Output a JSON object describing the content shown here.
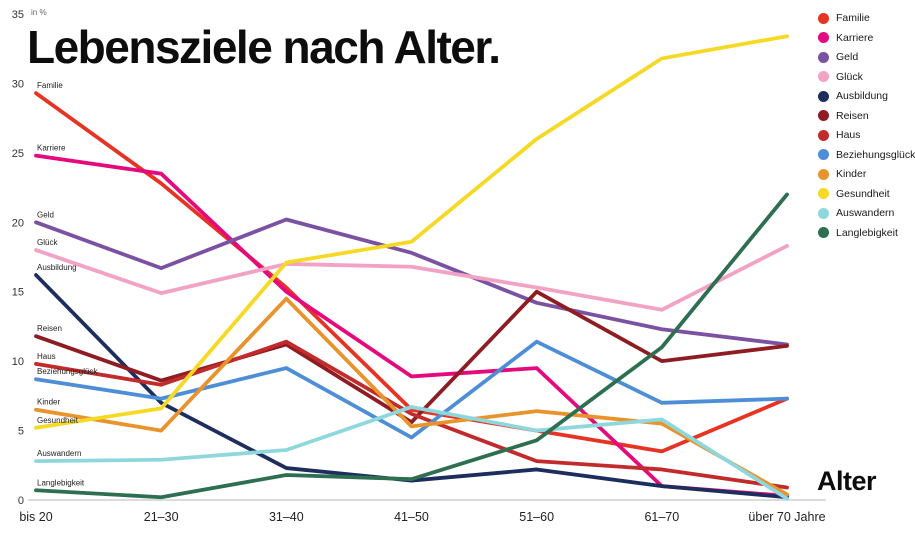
{
  "chart_data": {
    "type": "line",
    "title": "Lebensziele nach Alter.",
    "ylabel": "in %",
    "xlabel": "Alter",
    "ylim": [
      0,
      35
    ],
    "ytick_step": 5,
    "grid": false,
    "legend_position": "top-right",
    "categories": [
      "bis 20",
      "21–30",
      "31–40",
      "41–50",
      "51–60",
      "61–70",
      "über 70 Jahre"
    ],
    "series": [
      {
        "name": "Familie",
        "color": "#e63323",
        "values": [
          29.3,
          22.8,
          15.3,
          6.5,
          5.0,
          3.5,
          7.3
        ]
      },
      {
        "name": "Karriere",
        "color": "#e40a7e",
        "values": [
          24.8,
          23.5,
          15.0,
          8.9,
          9.5,
          1.0,
          0.3
        ]
      },
      {
        "name": "Geld",
        "color": "#7b52a1",
        "values": [
          20.0,
          16.7,
          20.2,
          17.8,
          14.2,
          12.3,
          11.2
        ]
      },
      {
        "name": "Glück",
        "color": "#f2a3c5",
        "values": [
          18.0,
          14.9,
          17.0,
          16.8,
          15.3,
          13.7,
          18.3
        ]
      },
      {
        "name": "Ausbildung",
        "color": "#1c2d5e",
        "values": [
          16.2,
          7.0,
          2.3,
          1.4,
          2.2,
          1.0,
          0.2
        ]
      },
      {
        "name": "Reisen",
        "color": "#8e1c22",
        "values": [
          11.8,
          8.6,
          11.2,
          5.6,
          15.0,
          10.0,
          11.1
        ]
      },
      {
        "name": "Haus",
        "color": "#c22b2b",
        "values": [
          9.8,
          8.3,
          11.4,
          6.2,
          2.8,
          2.2,
          0.9
        ]
      },
      {
        "name": "Beziehungsglück",
        "color": "#4d8ed6",
        "values": [
          8.7,
          7.3,
          9.5,
          4.5,
          11.4,
          7.0,
          7.3
        ]
      },
      {
        "name": "Kinder",
        "color": "#e8932c",
        "values": [
          6.5,
          5.0,
          14.5,
          5.3,
          6.4,
          5.5,
          0.4
        ]
      },
      {
        "name": "Gesundheit",
        "color": "#f6d925",
        "values": [
          5.2,
          6.6,
          17.1,
          18.6,
          26.0,
          31.8,
          33.4
        ]
      },
      {
        "name": "Auswandern",
        "color": "#8ed8dd",
        "values": [
          2.8,
          2.9,
          3.6,
          6.7,
          5.0,
          5.8,
          0.1
        ]
      },
      {
        "name": "Langlebigkeit",
        "color": "#2f6f51",
        "values": [
          0.7,
          0.2,
          1.8,
          1.5,
          4.3,
          11.0,
          22.0
        ]
      }
    ]
  }
}
